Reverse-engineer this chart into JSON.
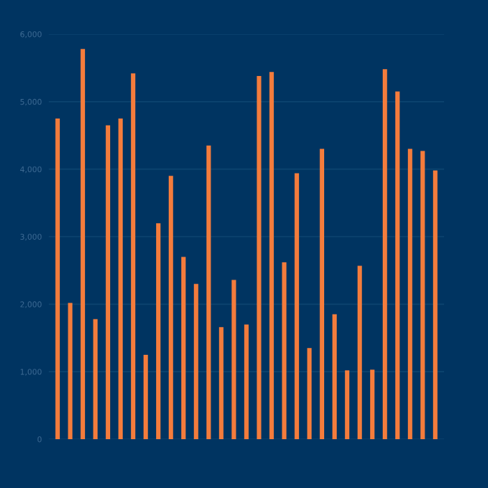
{
  "chart_data": {
    "type": "bar",
    "categories": [
      null,
      null,
      null,
      null,
      null,
      null,
      null,
      null,
      null,
      null,
      null,
      null,
      null,
      null,
      null,
      null,
      null,
      null,
      null,
      null,
      null,
      null,
      null,
      null,
      null,
      null,
      null,
      null,
      null,
      null,
      null
    ],
    "values": [
      4750,
      2020,
      5780,
      1780,
      4650,
      4750,
      5420,
      1250,
      3200,
      3900,
      2700,
      2300,
      4350,
      1660,
      2360,
      1700,
      5380,
      5440,
      2620,
      3940,
      1350,
      4300,
      1850,
      1020,
      2570,
      1030,
      5480,
      5150,
      4300,
      4270,
      3980
    ],
    "color": "#f47c3c",
    "ylim": [
      0,
      6000
    ],
    "yticks": [
      {
        "value": 0,
        "label": "0"
      },
      {
        "value": 1000,
        "label": "1,000"
      },
      {
        "value": 2000,
        "label": "2,000"
      },
      {
        "value": 3000,
        "label": "3,000"
      },
      {
        "value": 4000,
        "label": "4,000"
      },
      {
        "value": 5000,
        "label": "5,000"
      },
      {
        "value": 6000,
        "label": "6,000"
      }
    ],
    "grid": "y"
  }
}
